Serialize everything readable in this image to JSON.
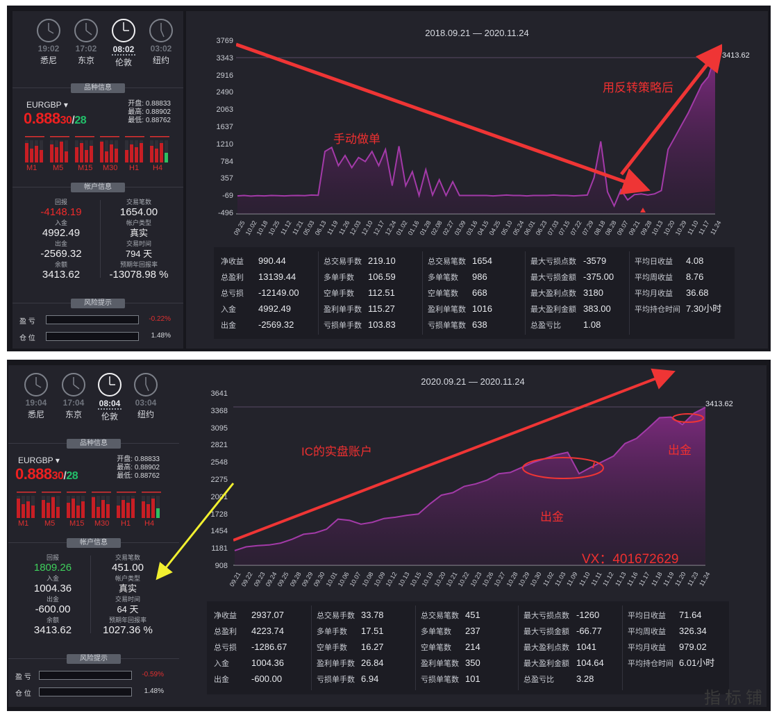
{
  "top": {
    "clocks": [
      {
        "time": "19:02",
        "city": "悉尼",
        "active": false
      },
      {
        "time": "17:02",
        "city": "东京",
        "active": false
      },
      {
        "time": "08:02",
        "city": "伦敦",
        "active": true
      },
      {
        "time": "03:02",
        "city": "纽约",
        "active": false
      }
    ],
    "sections": {
      "symbol": "品种信息",
      "account": "帐户信息",
      "risk": "风险提示"
    },
    "symbol": "EURGBP",
    "price_main": "0.888",
    "price_a": "30",
    "price_sep": "/",
    "price_b": "28",
    "ohl": [
      "开盘: 0.88833",
      "最高: 0.88902",
      "最低: 0.88762"
    ],
    "timeframes": [
      "M1",
      "M5",
      "M15",
      "M30",
      "H1",
      "H4"
    ],
    "account": {
      "left": [
        {
          "label": "回报",
          "value": "-4148.19",
          "color": "red"
        },
        {
          "label": "入金",
          "value": "4992.49"
        },
        {
          "label": "出金",
          "value": "-2569.32"
        },
        {
          "label": "余额",
          "value": "3413.62"
        }
      ],
      "right": [
        {
          "label": "交易笔数",
          "value": "1654.00"
        },
        {
          "label": "帐户类型",
          "value": "真实"
        },
        {
          "label": "交易时间",
          "value": "794 天"
        },
        {
          "label": "预期年回报率",
          "value": "-13078.98 %"
        }
      ]
    },
    "risk": [
      {
        "label": "盈 亏",
        "value": "-0.22%",
        "color": "#e03030"
      },
      {
        "label": "仓 位",
        "value": "1.48%",
        "color": "#d8dade"
      }
    ],
    "range": "2018.09.21 — 2020.11.24",
    "yticks": [
      "3769",
      "3343",
      "2916",
      "2490",
      "2063",
      "1637",
      "1210",
      "784",
      "357",
      "-69",
      "-496"
    ],
    "xticks": [
      "09.25",
      "10.02",
      "10.18",
      "10.25",
      "11.12",
      "11.21",
      "05.03",
      "06.13",
      "11.19",
      "11.26",
      "12.03",
      "12.10",
      "12.17",
      "12.24",
      "01.02",
      "01.16",
      "01.28",
      "02.08",
      "02.27",
      "03.09",
      "03.16",
      "04.15",
      "04.25",
      "05.10",
      "05.24",
      "06.01",
      "06.23",
      "07.03",
      "07.15",
      "07.22",
      "07.29",
      "08.18",
      "08.28",
      "09.07",
      "09.21",
      "09.28",
      "10.13",
      "10.20",
      "10.29",
      "11.10",
      "11.17",
      "11.24"
    ],
    "end_label": "3413.62",
    "annotations": [
      "手动做单",
      "用反转策略后"
    ],
    "stats": [
      [
        [
          "净收益",
          "990.44"
        ],
        [
          "总盈利",
          "13139.44"
        ],
        [
          "总亏损",
          "-12149.00"
        ],
        [
          "入金",
          "4992.49"
        ],
        [
          "出金",
          "-2569.32"
        ]
      ],
      [
        [
          "总交易手数",
          "219.10"
        ],
        [
          "多单手数",
          "106.59"
        ],
        [
          "空单手数",
          "112.51"
        ],
        [
          "盈利单手数",
          "115.27"
        ],
        [
          "亏损单手数",
          "103.83"
        ]
      ],
      [
        [
          "总交易笔数",
          "1654"
        ],
        [
          "多单笔数",
          "986"
        ],
        [
          "空单笔数",
          "668"
        ],
        [
          "盈利单笔数",
          "1016"
        ],
        [
          "亏损单笔数",
          "638"
        ]
      ],
      [
        [
          "最大亏损点数",
          "-3579"
        ],
        [
          "最大亏损金额",
          "-375.00"
        ],
        [
          "最大盈利点数",
          "3180"
        ],
        [
          "最大盈利金额",
          "383.00"
        ],
        [
          "总盈亏比",
          "1.08"
        ]
      ],
      [
        [
          "平均日收益",
          "4.08"
        ],
        [
          "平均周收益",
          "8.76"
        ],
        [
          "平均月收益",
          "36.68"
        ],
        [
          "平均持仓时间",
          "7.30小时"
        ]
      ]
    ]
  },
  "bottom": {
    "clocks": [
      {
        "time": "19:04",
        "city": "悉尼",
        "active": false
      },
      {
        "time": "17:04",
        "city": "东京",
        "active": false
      },
      {
        "time": "08:04",
        "city": "伦敦",
        "active": true
      },
      {
        "time": "03:04",
        "city": "纽约",
        "active": false
      }
    ],
    "sections": {
      "symbol": "品种信息",
      "account": "帐户信息",
      "risk": "风险提示"
    },
    "symbol": "EURGBP",
    "price_main": "0.888",
    "price_a": "30",
    "price_sep": "/",
    "price_b": "28",
    "ohl": [
      "开盘: 0.88833",
      "最高: 0.88902",
      "最低: 0.88762"
    ],
    "timeframes": [
      "M1",
      "M5",
      "M15",
      "M30",
      "H1",
      "H4"
    ],
    "account": {
      "left": [
        {
          "label": "回报",
          "value": "1809.26",
          "color": "grn"
        },
        {
          "label": "入金",
          "value": "1004.36"
        },
        {
          "label": "出金",
          "value": "-600.00"
        },
        {
          "label": "余额",
          "value": "3413.62"
        }
      ],
      "right": [
        {
          "label": "交易笔数",
          "value": "451.00"
        },
        {
          "label": "帐户类型",
          "value": "真实"
        },
        {
          "label": "交易时间",
          "value": "64 天"
        },
        {
          "label": "预期年回报率",
          "value": "1027.36 %"
        }
      ]
    },
    "risk": [
      {
        "label": "盈 亏",
        "value": "-0.59%",
        "color": "#e03030"
      },
      {
        "label": "仓 位",
        "value": "1.48%",
        "color": "#d8dade"
      }
    ],
    "range": "2020.09.21 — 2020.11.24",
    "yticks": [
      "3641",
      "3368",
      "3095",
      "2821",
      "2548",
      "2275",
      "2001",
      "1728",
      "1454",
      "1181",
      "908"
    ],
    "xticks": [
      "09.21",
      "09.22",
      "09.23",
      "09.24",
      "09.25",
      "09.28",
      "09.29",
      "09.30",
      "10.01",
      "10.06",
      "10.07",
      "10.08",
      "10.09",
      "10.12",
      "10.13",
      "10.15",
      "10.19",
      "10.20",
      "10.21",
      "10.22",
      "10.23",
      "10.26",
      "10.27",
      "10.28",
      "10.29",
      "10.30",
      "11.02",
      "11.03",
      "11.09",
      "11.10",
      "11.11",
      "11.12",
      "11.13",
      "11.16",
      "11.17",
      "11.18",
      "11.19",
      "11.20",
      "11.23",
      "11.24"
    ],
    "end_label": "3413.62",
    "annotations": [
      "IC的实盘账户",
      "出金",
      "出金",
      "VX：401672629"
    ],
    "stats": [
      [
        [
          "净收益",
          "2937.07"
        ],
        [
          "总盈利",
          "4223.74"
        ],
        [
          "总亏损",
          "-1286.67"
        ],
        [
          "入金",
          "1004.36"
        ],
        [
          "出金",
          "-600.00"
        ]
      ],
      [
        [
          "总交易手数",
          "33.78"
        ],
        [
          "多单手数",
          "17.51"
        ],
        [
          "空单手数",
          "16.27"
        ],
        [
          "盈利单手数",
          "26.84"
        ],
        [
          "亏损单手数",
          "6.94"
        ]
      ],
      [
        [
          "总交易笔数",
          "451"
        ],
        [
          "多单笔数",
          "237"
        ],
        [
          "空单笔数",
          "214"
        ],
        [
          "盈利单笔数",
          "350"
        ],
        [
          "亏损单笔数",
          "101"
        ]
      ],
      [
        [
          "最大亏损点数",
          "-1260"
        ],
        [
          "最大亏损金额",
          "-66.77"
        ],
        [
          "最大盈利点数",
          "1041"
        ],
        [
          "最大盈利金额",
          "104.64"
        ],
        [
          "总盈亏比",
          "3.28"
        ]
      ],
      [
        [
          "平均日收益",
          "71.64"
        ],
        [
          "平均周收益",
          "326.34"
        ],
        [
          "平均月收益",
          "979.02"
        ],
        [
          "平均持仓时间",
          "6.01小时"
        ]
      ]
    ]
  },
  "chart_data": [
    {
      "type": "area",
      "x_start": "2018.09.21",
      "x_end": "2020.11.24",
      "ylim": [
        -496,
        3769
      ],
      "values": [
        -50,
        -40,
        -55,
        -45,
        -50,
        -40,
        -45,
        -50,
        -42,
        -40,
        -45,
        -30,
        -35,
        1050,
        1150,
        700,
        950,
        650,
        900,
        800,
        1050,
        700,
        1100,
        200,
        1180,
        200,
        550,
        -40,
        600,
        -30,
        350,
        -40,
        300,
        -40,
        -40,
        -40,
        -40,
        -40,
        -50,
        -40,
        -30,
        -40,
        -40,
        -50,
        -40,
        -40,
        -40,
        -30,
        -40,
        -40,
        -50,
        -40,
        -30,
        400,
        1300,
        50,
        -300,
        100,
        -150,
        -20,
        0,
        -30,
        0,
        80,
        1100,
        1400,
        1700,
        2000,
        2350,
        2700,
        2900,
        3413
      ]
    },
    {
      "type": "area",
      "x_start": "2020.09.21",
      "x_end": "2020.11.24",
      "ylim": [
        908,
        3641
      ],
      "values": [
        1140,
        1200,
        1220,
        1230,
        1260,
        1320,
        1400,
        1420,
        1480,
        1640,
        1620,
        1560,
        1590,
        1650,
        1670,
        1700,
        1720,
        1880,
        2020,
        2060,
        2160,
        2200,
        2260,
        2360,
        2380,
        2460,
        2540,
        2600,
        2660,
        2700,
        2360,
        2460,
        2550,
        2640,
        2840,
        2920,
        3080,
        3250,
        3260,
        3140,
        3320,
        3413
      ]
    }
  ]
}
